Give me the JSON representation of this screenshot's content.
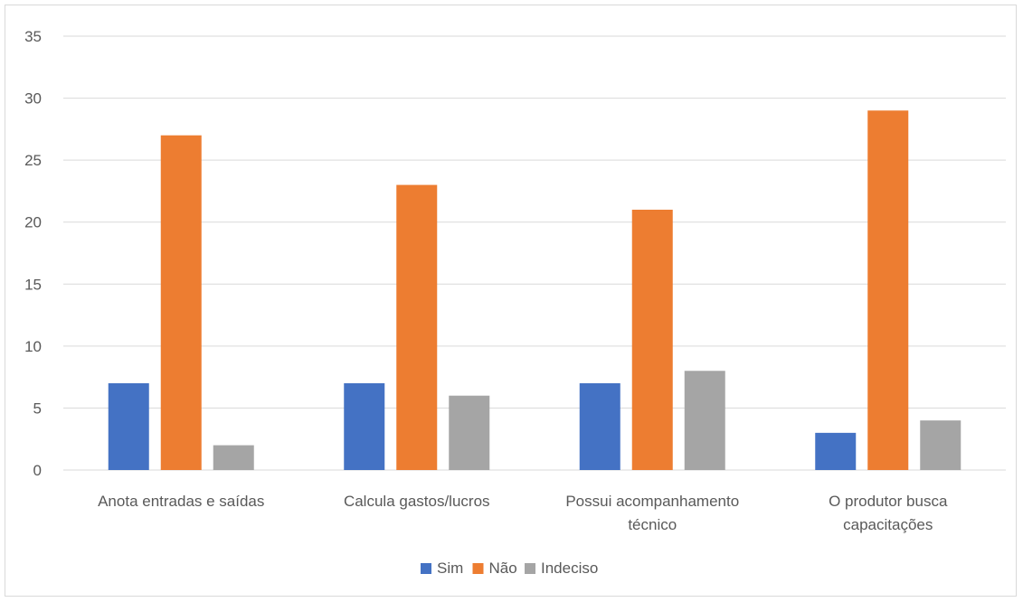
{
  "chart_data": {
    "type": "bar",
    "title": "",
    "xlabel": "",
    "ylabel": "",
    "ylim": [
      0,
      35
    ],
    "yticks": [
      0,
      5,
      10,
      15,
      20,
      25,
      30,
      35
    ],
    "grid": true,
    "legend_position": "bottom",
    "categories": [
      [
        "Anota entradas e saídas"
      ],
      [
        "Calcula gastos/lucros"
      ],
      [
        "Possui acompanhamento",
        "técnico"
      ],
      [
        "O produtor busca",
        "capacitações"
      ]
    ],
    "series": [
      {
        "name": "Sim",
        "color": "#4472C4",
        "values": [
          7,
          7,
          7,
          3
        ]
      },
      {
        "name": "Não",
        "color": "#ED7D31",
        "values": [
          27,
          23,
          21,
          29
        ]
      },
      {
        "name": "Indeciso",
        "color": "#A5A5A5",
        "values": [
          2,
          6,
          8,
          4
        ]
      }
    ]
  }
}
